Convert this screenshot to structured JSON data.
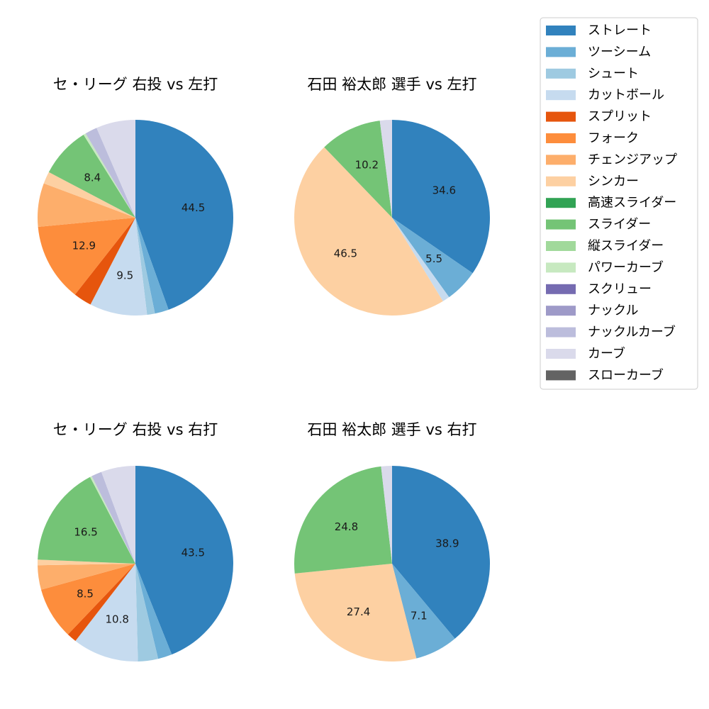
{
  "legend": {
    "items": [
      {
        "label": "ストレート",
        "color": "#3182bd"
      },
      {
        "label": "ツーシーム",
        "color": "#6baed6"
      },
      {
        "label": "シュート",
        "color": "#9ecae1"
      },
      {
        "label": "カットボール",
        "color": "#c6dbef"
      },
      {
        "label": "スプリット",
        "color": "#e6550d"
      },
      {
        "label": "フォーク",
        "color": "#fd8d3c"
      },
      {
        "label": "チェンジアップ",
        "color": "#fdae6b"
      },
      {
        "label": "シンカー",
        "color": "#fdd0a2"
      },
      {
        "label": "高速スライダー",
        "color": "#31a354"
      },
      {
        "label": "スライダー",
        "color": "#74c476"
      },
      {
        "label": "縦スライダー",
        "color": "#a1d99b"
      },
      {
        "label": "パワーカーブ",
        "color": "#c7e9c0"
      },
      {
        "label": "スクリュー",
        "color": "#756bb1"
      },
      {
        "label": "ナックル",
        "color": "#9e9ac8"
      },
      {
        "label": "ナックルカーブ",
        "color": "#bcbddc"
      },
      {
        "label": "カーブ",
        "color": "#dadaeb"
      },
      {
        "label": "スローカーブ",
        "color": "#636363"
      }
    ]
  },
  "chart_data": [
    {
      "type": "pie",
      "title": "セ・リーグ 右投 vs 左打",
      "start_angle": 90,
      "direction": "clockwise",
      "slices": [
        {
          "label": "ストレート",
          "value": 44.5,
          "shown": "44.5"
        },
        {
          "label": "ツーシーム",
          "value": 2.3
        },
        {
          "label": "シュート",
          "value": 1.3
        },
        {
          "label": "カットボール",
          "value": 9.5,
          "shown": "9.5"
        },
        {
          "label": "スプリット",
          "value": 3.0
        },
        {
          "label": "フォーク",
          "value": 12.9,
          "shown": "12.9"
        },
        {
          "label": "チェンジアップ",
          "value": 7.2
        },
        {
          "label": "シンカー",
          "value": 2.0
        },
        {
          "label": "スライダー",
          "value": 8.4,
          "shown": "8.4"
        },
        {
          "label": "パワーカーブ",
          "value": 0.4
        },
        {
          "label": "ナックルカーブ",
          "value": 2.0
        },
        {
          "label": "カーブ",
          "value": 6.5
        }
      ]
    },
    {
      "type": "pie",
      "title": "石田 裕太郎 選手 vs 左打",
      "start_angle": 90,
      "direction": "clockwise",
      "slices": [
        {
          "label": "ストレート",
          "value": 34.6,
          "shown": "34.6"
        },
        {
          "label": "ツーシーム",
          "value": 5.5,
          "shown": "5.5"
        },
        {
          "label": "カットボール",
          "value": 1.2
        },
        {
          "label": "シンカー",
          "value": 46.5,
          "shown": "46.5"
        },
        {
          "label": "スライダー",
          "value": 10.2,
          "shown": "10.2"
        },
        {
          "label": "カーブ",
          "value": 2.0
        }
      ]
    },
    {
      "type": "pie",
      "title": "セ・リーグ 右投 vs 右打",
      "start_angle": 90,
      "direction": "clockwise",
      "slices": [
        {
          "label": "ストレート",
          "value": 43.5,
          "shown": "43.5"
        },
        {
          "label": "ツーシーム",
          "value": 2.3
        },
        {
          "label": "シュート",
          "value": 3.3
        },
        {
          "label": "カットボール",
          "value": 10.8,
          "shown": "10.8"
        },
        {
          "label": "スプリット",
          "value": 1.6
        },
        {
          "label": "フォーク",
          "value": 8.5,
          "shown": "8.5"
        },
        {
          "label": "チェンジアップ",
          "value": 4.0
        },
        {
          "label": "シンカー",
          "value": 0.9
        },
        {
          "label": "スライダー",
          "value": 16.5,
          "shown": "16.5"
        },
        {
          "label": "パワーカーブ",
          "value": 0.3
        },
        {
          "label": "ナックルカーブ",
          "value": 1.7
        },
        {
          "label": "カーブ",
          "value": 5.6
        }
      ]
    },
    {
      "type": "pie",
      "title": "石田 裕太郎 選手 vs 右打",
      "start_angle": 90,
      "direction": "clockwise",
      "slices": [
        {
          "label": "ストレート",
          "value": 38.9,
          "shown": "38.9"
        },
        {
          "label": "ツーシーム",
          "value": 7.1,
          "shown": "7.1"
        },
        {
          "label": "シンカー",
          "value": 27.4,
          "shown": "27.4"
        },
        {
          "label": "スライダー",
          "value": 24.8,
          "shown": "24.8"
        },
        {
          "label": "カーブ",
          "value": 1.8
        }
      ]
    }
  ]
}
